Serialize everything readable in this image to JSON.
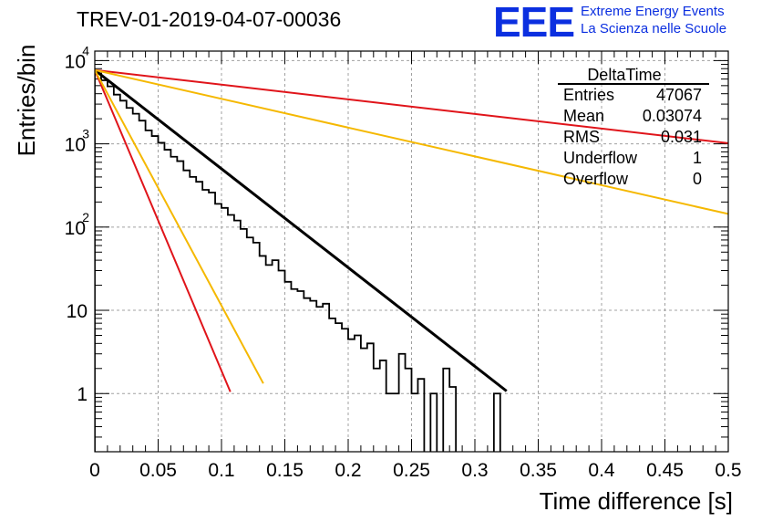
{
  "header": {
    "run_title": "TREV-01-2019-04-07-00036",
    "logo_text": "EEE",
    "logo_line1": "Extreme Energy Events",
    "logo_line2": "La Scienza nelle Scuole"
  },
  "colors": {
    "logo": "#0b2fe0",
    "histogram": "#000000",
    "fit_black": "#000000",
    "fit_red": "#e0141a",
    "fit_orange": "#f5b800",
    "grid": "#a0a0a0"
  },
  "chart_data": {
    "type": "histogram",
    "title": "TREV-01-2019-04-07-00036",
    "xlabel": "Time difference [s]",
    "ylabel": "Entries/bin",
    "xlim": [
      0,
      0.5
    ],
    "ylim": [
      0.2,
      13000
    ],
    "yscale": "log",
    "grid": true,
    "x_ticks": [
      "0",
      "0.05",
      "0.1",
      "0.15",
      "0.2",
      "0.25",
      "0.3",
      "0.35",
      "0.4",
      "0.45",
      "0.5"
    ],
    "y_ticks": [
      {
        "value": 1,
        "label": "1"
      },
      {
        "value": 10,
        "label": "10"
      },
      {
        "value": 100,
        "label": "10",
        "exp": "2"
      },
      {
        "value": 1000,
        "label": "10",
        "exp": "3"
      },
      {
        "value": 10000,
        "label": "10",
        "exp": "4"
      }
    ],
    "histogram": {
      "bin_width": 0.005,
      "counts": [
        7000,
        5800,
        4900,
        3900,
        3300,
        2700,
        2300,
        1900,
        1450,
        1240,
        1030,
        850,
        700,
        620,
        480,
        400,
        350,
        280,
        260,
        190,
        170,
        140,
        120,
        95,
        75,
        65,
        45,
        35,
        40,
        30,
        22,
        18,
        17,
        14,
        13,
        11,
        12,
        8,
        7,
        6,
        4.5,
        5,
        3.5,
        4,
        2,
        2.5,
        1,
        1,
        3,
        2,
        1,
        1.5,
        0,
        1,
        0,
        2,
        1.2,
        0,
        0,
        0,
        0,
        0,
        0,
        1,
        0,
        0
      ]
    },
    "fits": [
      {
        "name": "fit",
        "color": "#000000",
        "A": 7700,
        "tau": 0.0366,
        "x_end": 0.325
      },
      {
        "name": "slow-red",
        "color": "#e0141a",
        "A": 7700,
        "tau": 0.247,
        "x_end": 0.5
      },
      {
        "name": "slow-orange",
        "color": "#f5b800",
        "A": 7700,
        "tau": 0.1256,
        "x_end": 0.5
      },
      {
        "name": "fast-red",
        "color": "#e0141a",
        "A": 7700,
        "tau": 0.01202,
        "x_end": 0.107
      },
      {
        "name": "fast-orange",
        "color": "#f5b800",
        "A": 7700,
        "tau": 0.01534,
        "x_end": 0.133
      }
    ],
    "stats_box": {
      "title": "DeltaTime",
      "rows": [
        {
          "label": "Entries",
          "value": "47067"
        },
        {
          "label": "Mean",
          "value": "0.03074"
        },
        {
          "label": "RMS",
          "value": "0.031"
        },
        {
          "label": "Underflow",
          "value": "1"
        },
        {
          "label": "Overflow",
          "value": "0"
        }
      ]
    }
  }
}
